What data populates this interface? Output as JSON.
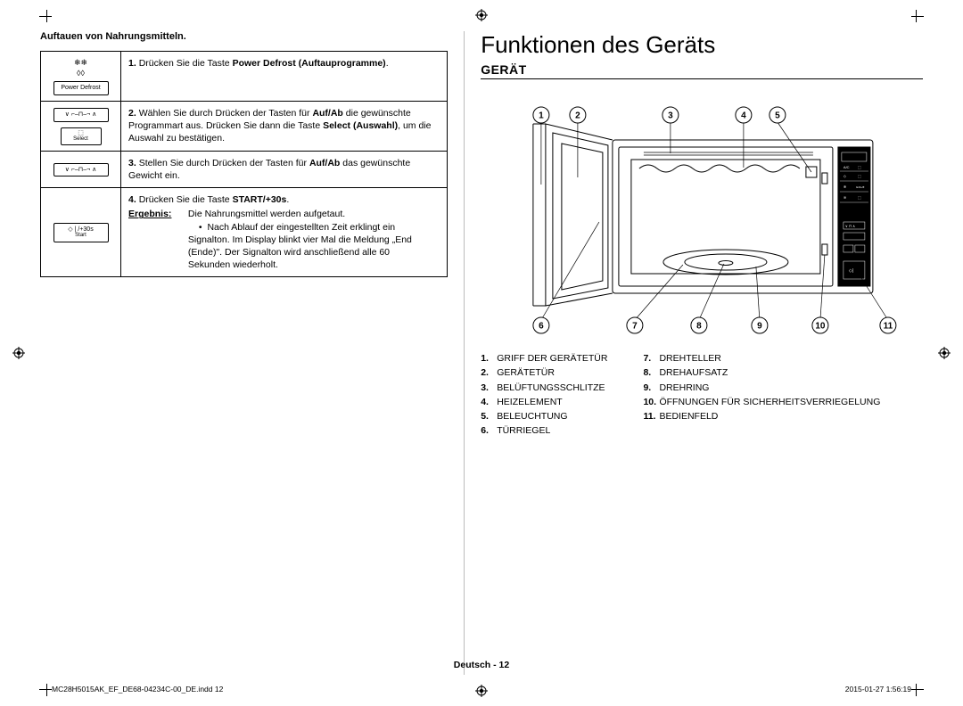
{
  "left": {
    "heading": "Auftauen von Nahrungsmitteln.",
    "steps": [
      {
        "icon_main": "Power Defrost",
        "icon_sub": "",
        "num": "1.",
        "text_pre": "Drücken Sie die Taste ",
        "bold1": "Power Defrost",
        "text_mid": " ",
        "bold2": "(Auftauprogramme)",
        "text_post": "."
      },
      {
        "icon_main": "∨  ⌐–⊓–¬  ∧",
        "icon_sub": "Select",
        "num": "2.",
        "text_pre": "Wählen Sie durch Drücken der Tasten für ",
        "bold1": "Auf/Ab",
        "text_mid": " die gewünschte Programmart aus. Drücken Sie dann die Taste ",
        "bold2": "Select (Auswahl)",
        "text_post": ", um die Auswahl zu bestätigen."
      },
      {
        "icon_main": "∨  ⌐–⊓–¬  ∧",
        "icon_sub": "",
        "num": "3.",
        "text_pre": "Stellen Sie durch Drücken der Tasten für ",
        "bold1": "Auf/Ab",
        "text_mid": " das gewünschte Gewicht ein.",
        "bold2": "",
        "text_post": ""
      },
      {
        "icon_main": "◇ | /+30s",
        "icon_sub": "Start",
        "num": "4.",
        "text_pre": "Drücken Sie die Taste ",
        "bold1": "START/+30s",
        "text_mid": ".",
        "bold2": "",
        "text_post": ""
      }
    ],
    "ergebnis_label": "Ergebnis:",
    "ergebnis_line1": "Die Nahrungsmittel werden aufgetaut.",
    "ergebnis_bullet": "Nach Ablauf der eingestellten Zeit erklingt ein Signalton. Im Display blinkt vier Mal die Meldung „End (Ende)\". Der Signalton wird anschließend alle 60 Sekunden wiederholt."
  },
  "right": {
    "h1": "Funktionen des Geräts",
    "h2": "GERÄT",
    "callouts_top": [
      "1",
      "2",
      "3",
      "4",
      "5"
    ],
    "callouts_bottom": [
      "6",
      "7",
      "8",
      "9",
      "10",
      "11"
    ],
    "legend_left": [
      {
        "n": "1.",
        "t": "GRIFF DER GERÄTETÜR"
      },
      {
        "n": "2.",
        "t": "GERÄTETÜR"
      },
      {
        "n": "3.",
        "t": "BELÜFTUNGSSCHLITZE"
      },
      {
        "n": "4.",
        "t": "HEIZELEMENT"
      },
      {
        "n": "5.",
        "t": "BELEUCHTUNG"
      },
      {
        "n": "6.",
        "t": "TÜRRIEGEL"
      }
    ],
    "legend_right": [
      {
        "n": "7.",
        "t": "DREHTELLER"
      },
      {
        "n": "8.",
        "t": "DREHAUFSATZ"
      },
      {
        "n": "9.",
        "t": "DREHRING"
      },
      {
        "n": "10.",
        "t": "ÖFFNUNGEN FÜR SICHERHEITSVERRIEGELUNG"
      },
      {
        "n": "11.",
        "t": "BEDIENFELD"
      }
    ]
  },
  "footer": {
    "center": "Deutsch - 12",
    "left": "MC28H5015AK_EF_DE68-04234C-00_DE.indd   12",
    "right": "2015-01-27   1:56:19"
  },
  "diagram_style": {
    "stroke": "#000000",
    "panel_fill": "#000000",
    "panel_text": "#ffffff",
    "circle_r": 9,
    "circle_font": 10
  }
}
